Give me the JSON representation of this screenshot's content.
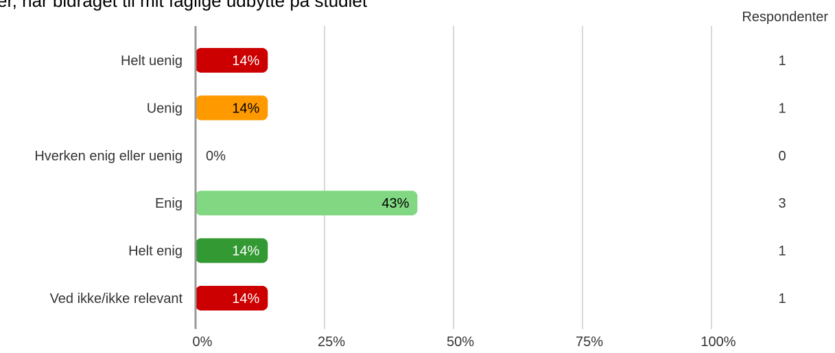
{
  "chart_data": {
    "type": "bar",
    "orientation": "horizontal",
    "title": "er, har bidraget til mit faglige udbytte på studiet",
    "respondents_header": "Respondenter",
    "categories": [
      "Helt uenig",
      "Uenig",
      "Hverken enig eller uenig",
      "Enig",
      "Helt enig",
      "Ved ikke/ikke relevant"
    ],
    "values": [
      14,
      14,
      0,
      43,
      14,
      14
    ],
    "value_labels": [
      "14%",
      "14%",
      "0%",
      "43%",
      "14%",
      "14%"
    ],
    "respondents": [
      "1",
      "1",
      "0",
      "3",
      "1",
      "1"
    ],
    "colors": [
      "#cc0000",
      "#ff9900",
      "#cccccc",
      "#82d882",
      "#339933",
      "#cc0000"
    ],
    "label_colors": [
      "#ffffff",
      "#000000",
      "#333333",
      "#000000",
      "#ffffff",
      "#ffffff"
    ],
    "xlim": [
      0,
      100
    ],
    "x_ticks": [
      "0%",
      "25%",
      "50%",
      "75%",
      "100%"
    ],
    "grid": true,
    "legend": "none"
  }
}
